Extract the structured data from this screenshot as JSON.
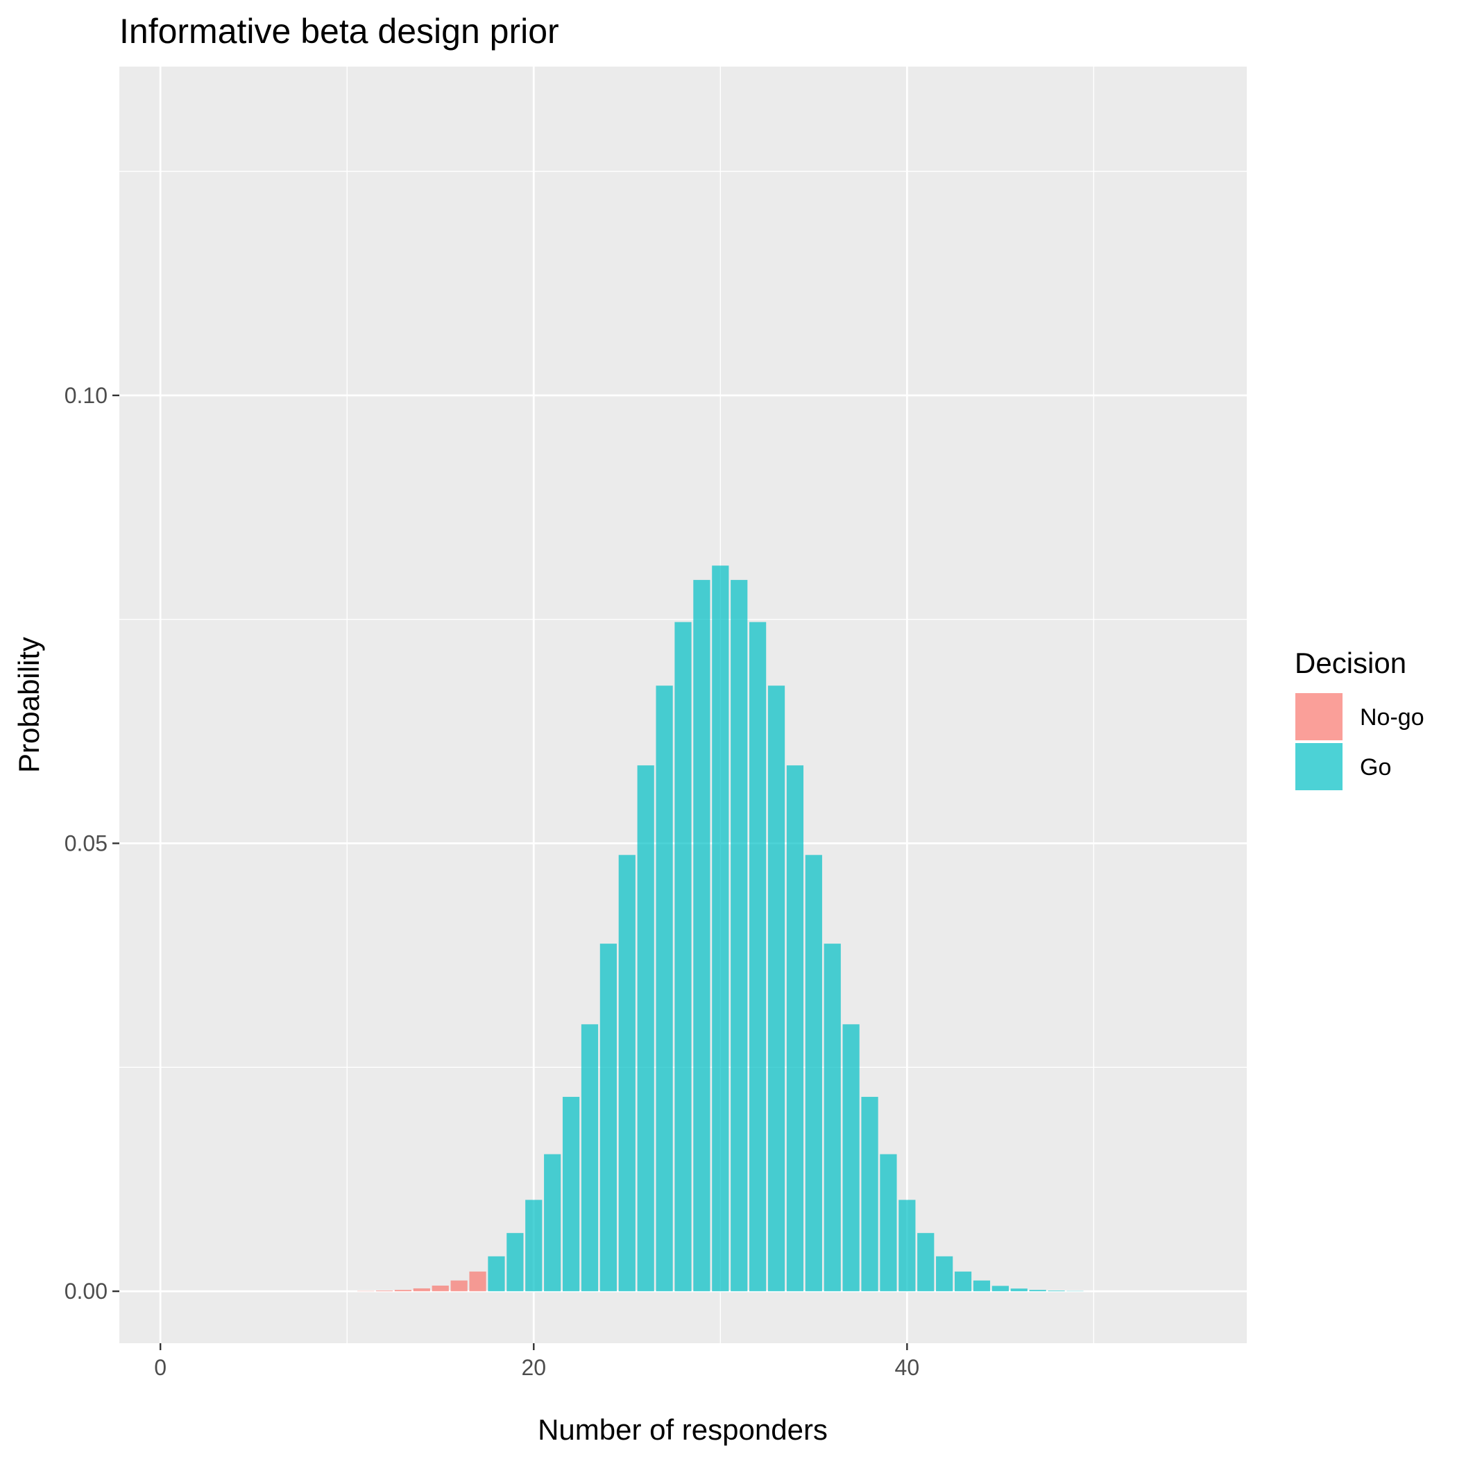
{
  "chart_data": {
    "type": "bar",
    "title": "Informative beta design prior",
    "xlabel": "Number of responders",
    "ylabel": "Probability",
    "xlim": [
      -2.2,
      58.2
    ],
    "ylim": [
      -0.0058,
      0.1367
    ],
    "x_major_ticks": [
      0,
      20,
      40
    ],
    "x_tick_labels": [
      "0",
      "20",
      "40"
    ],
    "x_minor_ticks": [
      10,
      30,
      50
    ],
    "y_major_ticks": [
      0.0,
      0.05,
      0.1
    ],
    "y_tick_labels": [
      "0.00",
      "0.05",
      "0.10"
    ],
    "y_minor_ticks": [
      0.025,
      0.075,
      0.125
    ],
    "panel_background": "#ebebeb",
    "grid_color": "#ffffff",
    "grid": true,
    "legend": {
      "title": "Decision",
      "position": "right",
      "entries": [
        {
          "label": "No-go",
          "color": "#f8766d"
        },
        {
          "label": "Go",
          "color": "#00bfc4"
        }
      ]
    },
    "bar_opacity": 0.7,
    "series": [
      {
        "name": "No-go",
        "color": "#f8766d",
        "x": [
          11,
          12,
          13,
          14,
          15,
          16,
          17
        ],
        "values": [
          3e-05,
          7e-05,
          0.00015,
          0.00032,
          0.00063,
          0.0012,
          0.0022
        ]
      },
      {
        "name": "Go",
        "color": "#00bfc4",
        "x": [
          18,
          19,
          20,
          21,
          22,
          23,
          24,
          25,
          26,
          27,
          28,
          29,
          30,
          31,
          32,
          33,
          34,
          35,
          36,
          37,
          38,
          39,
          40,
          41,
          42,
          43,
          44,
          45,
          46,
          47,
          48,
          49
        ],
        "values": [
          0.0039,
          0.0065,
          0.0102,
          0.0153,
          0.0217,
          0.0298,
          0.0388,
          0.0487,
          0.0587,
          0.0676,
          0.0747,
          0.0794,
          0.081,
          0.0794,
          0.0747,
          0.0676,
          0.0587,
          0.0487,
          0.0388,
          0.0298,
          0.0217,
          0.0153,
          0.0102,
          0.0065,
          0.0039,
          0.0022,
          0.0012,
          0.0006,
          0.0003,
          0.00015,
          7e-05,
          3e-05
        ]
      }
    ]
  }
}
